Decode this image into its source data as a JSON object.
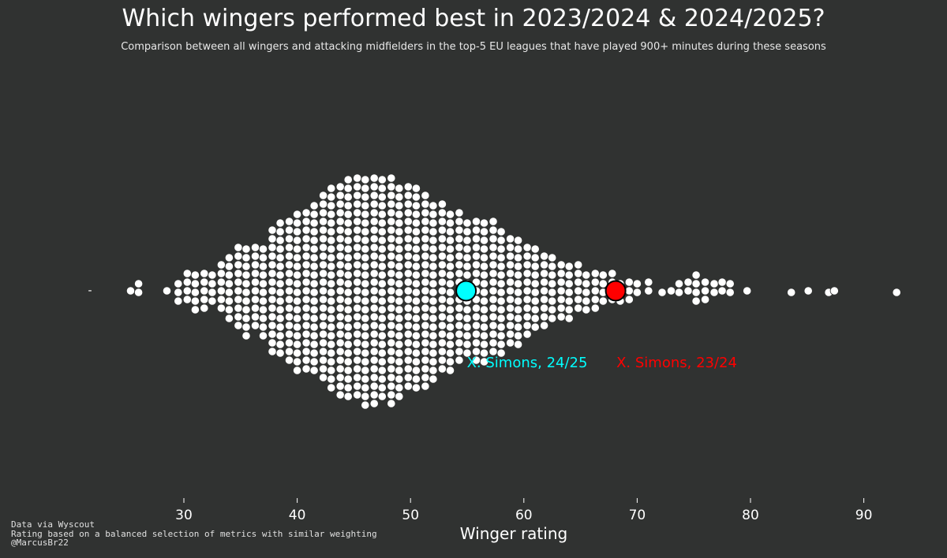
{
  "title": "Which wingers performed best in 2023/2024 & 2024/2025?",
  "subtitle": "Comparison between all wingers and attacking midfielders in the top-5 EU leagues that have played 900+ minutes during these seasons",
  "footer": {
    "line1": "Data via Wyscout",
    "line2": "Rating based on a balanced selection of metrics with similar weighting",
    "line3": "@MarcusBr22"
  },
  "colors": {
    "background": "#303231",
    "points": "#ffffff",
    "highlight_24_25": "#00ffff",
    "highlight_23_24": "#ff0000"
  },
  "chart_data": {
    "type": "scatter",
    "style": "beeswarm",
    "title": "Which wingers performed best in 2023/2024 & 2024/2025?",
    "xlabel": "Winger rating",
    "ylabel": "",
    "xlim": [
      20,
      94
    ],
    "xticks": [
      30,
      40,
      50,
      60,
      70,
      80,
      90
    ],
    "ytick_label": "-",
    "grid": false,
    "density_bins": [
      {
        "x": 25.3,
        "count": 1
      },
      {
        "x": 26.0,
        "count": 2
      },
      {
        "x": 28.5,
        "count": 1
      },
      {
        "x": 29.5,
        "count": 3
      },
      {
        "x": 30.3,
        "count": 4
      },
      {
        "x": 31.0,
        "count": 5
      },
      {
        "x": 31.8,
        "count": 5
      },
      {
        "x": 32.5,
        "count": 4
      },
      {
        "x": 33.3,
        "count": 6
      },
      {
        "x": 34.0,
        "count": 8
      },
      {
        "x": 34.8,
        "count": 10
      },
      {
        "x": 35.5,
        "count": 11
      },
      {
        "x": 36.3,
        "count": 10
      },
      {
        "x": 37.0,
        "count": 11
      },
      {
        "x": 37.8,
        "count": 15
      },
      {
        "x": 38.5,
        "count": 16
      },
      {
        "x": 39.3,
        "count": 17
      },
      {
        "x": 40.0,
        "count": 19
      },
      {
        "x": 40.8,
        "count": 19
      },
      {
        "x": 41.5,
        "count": 20
      },
      {
        "x": 42.3,
        "count": 22
      },
      {
        "x": 43.0,
        "count": 24
      },
      {
        "x": 43.8,
        "count": 25
      },
      {
        "x": 44.5,
        "count": 26
      },
      {
        "x": 45.3,
        "count": 26
      },
      {
        "x": 46.0,
        "count": 27
      },
      {
        "x": 46.8,
        "count": 27
      },
      {
        "x": 47.5,
        "count": 26
      },
      {
        "x": 48.3,
        "count": 27
      },
      {
        "x": 49.0,
        "count": 25
      },
      {
        "x": 49.8,
        "count": 24
      },
      {
        "x": 50.5,
        "count": 24
      },
      {
        "x": 51.3,
        "count": 23
      },
      {
        "x": 52.0,
        "count": 21
      },
      {
        "x": 52.8,
        "count": 20
      },
      {
        "x": 53.5,
        "count": 19
      },
      {
        "x": 54.3,
        "count": 18
      },
      {
        "x": 55.0,
        "count": 16
      },
      {
        "x": 55.8,
        "count": 17
      },
      {
        "x": 56.5,
        "count": 17
      },
      {
        "x": 57.3,
        "count": 16
      },
      {
        "x": 58.0,
        "count": 15
      },
      {
        "x": 58.8,
        "count": 13
      },
      {
        "x": 59.5,
        "count": 13
      },
      {
        "x": 60.3,
        "count": 11
      },
      {
        "x": 61.0,
        "count": 10
      },
      {
        "x": 61.8,
        "count": 9
      },
      {
        "x": 62.5,
        "count": 8
      },
      {
        "x": 63.3,
        "count": 7
      },
      {
        "x": 64.0,
        "count": 7
      },
      {
        "x": 64.8,
        "count": 6
      },
      {
        "x": 65.5,
        "count": 5
      },
      {
        "x": 66.3,
        "count": 5
      },
      {
        "x": 67.0,
        "count": 4
      },
      {
        "x": 67.8,
        "count": 4
      },
      {
        "x": 68.5,
        "count": 3
      },
      {
        "x": 69.3,
        "count": 3
      },
      {
        "x": 70.0,
        "count": 2
      },
      {
        "x": 71.0,
        "count": 2
      },
      {
        "x": 72.2,
        "count": 1
      },
      {
        "x": 73.0,
        "count": 1
      },
      {
        "x": 73.7,
        "count": 2
      },
      {
        "x": 74.5,
        "count": 2
      },
      {
        "x": 75.2,
        "count": 4
      },
      {
        "x": 76.0,
        "count": 3
      },
      {
        "x": 76.8,
        "count": 2
      },
      {
        "x": 77.5,
        "count": 2
      },
      {
        "x": 78.2,
        "count": 2
      },
      {
        "x": 79.7,
        "count": 1
      },
      {
        "x": 83.6,
        "count": 1
      },
      {
        "x": 85.1,
        "count": 1
      },
      {
        "x": 86.9,
        "count": 1
      },
      {
        "x": 87.4,
        "count": 1
      },
      {
        "x": 92.9,
        "count": 1
      }
    ],
    "highlights": [
      {
        "label": "X. Simons, 24/25",
        "x": 54.9,
        "color": "#00ffff"
      },
      {
        "label": "X. Simons, 23/24",
        "x": 68.1,
        "color": "#ff0000"
      }
    ]
  }
}
